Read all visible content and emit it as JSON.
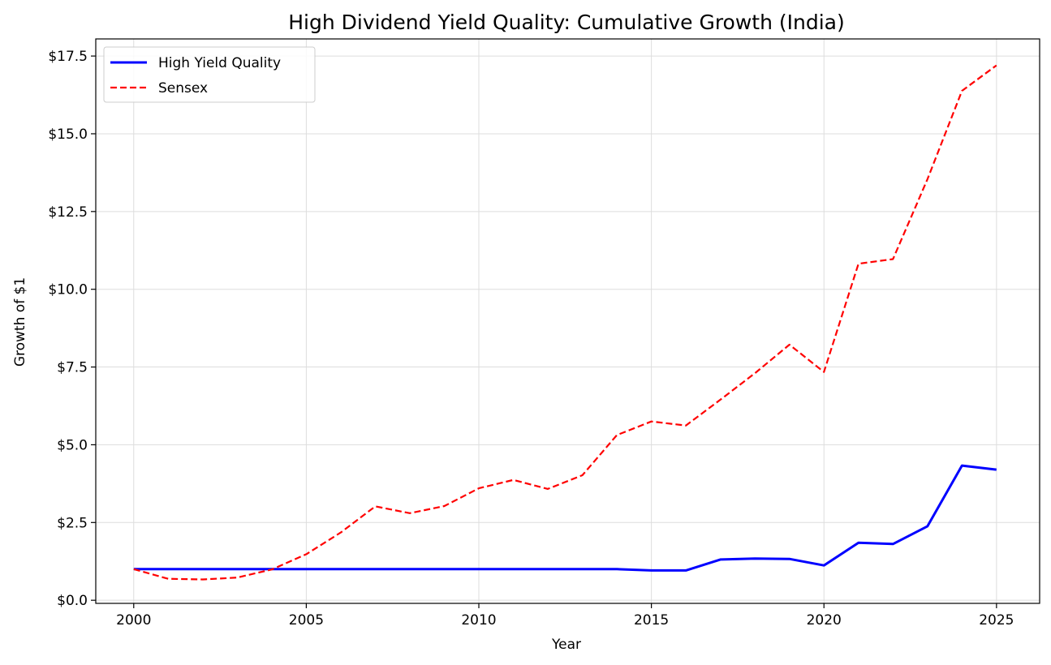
{
  "chart_data": {
    "type": "line",
    "title": "High Dividend Yield Quality: Cumulative Growth (India)",
    "xlabel": "Year",
    "ylabel": "Growth of $1",
    "xlim": [
      1998.9,
      2026.25
    ],
    "ylim": [
      -0.1,
      18.05
    ],
    "x_ticks": [
      2000,
      2005,
      2010,
      2015,
      2020,
      2025
    ],
    "y_ticks": [
      0,
      2.5,
      5,
      7.5,
      10,
      12.5,
      15,
      17.5
    ],
    "y_tick_labels": [
      "$0.0",
      "$2.5",
      "$5.0",
      "$7.5",
      "$10.0",
      "$12.5",
      "$15.0",
      "$17.5"
    ],
    "grid": true,
    "legend_position": "top-left",
    "x": [
      2000,
      2001,
      2002,
      2003,
      2004,
      2005,
      2006,
      2007,
      2008,
      2009,
      2010,
      2011,
      2012,
      2013,
      2014,
      2015,
      2016,
      2017,
      2018,
      2019,
      2020,
      2021,
      2022,
      2023,
      2024,
      2025
    ],
    "series": [
      {
        "name": "High Yield Quality",
        "color": "#0000ff",
        "style": "solid",
        "values": [
          1.0,
          1.0,
          1.0,
          1.0,
          1.0,
          1.0,
          1.0,
          1.0,
          1.0,
          1.0,
          1.0,
          1.0,
          1.0,
          1.0,
          1.0,
          0.96,
          0.96,
          1.31,
          1.34,
          1.33,
          1.12,
          1.85,
          1.81,
          2.38,
          4.33,
          4.2
        ]
      },
      {
        "name": "Sensex",
        "color": "#ff0000",
        "style": "dashed",
        "values": [
          1.0,
          0.69,
          0.67,
          0.73,
          0.99,
          1.48,
          2.18,
          3.02,
          2.8,
          3.03,
          3.6,
          3.87,
          3.58,
          4.02,
          5.31,
          5.75,
          5.62,
          6.45,
          7.3,
          8.22,
          7.34,
          10.82,
          10.97,
          13.54,
          16.38,
          17.2
        ]
      }
    ]
  }
}
